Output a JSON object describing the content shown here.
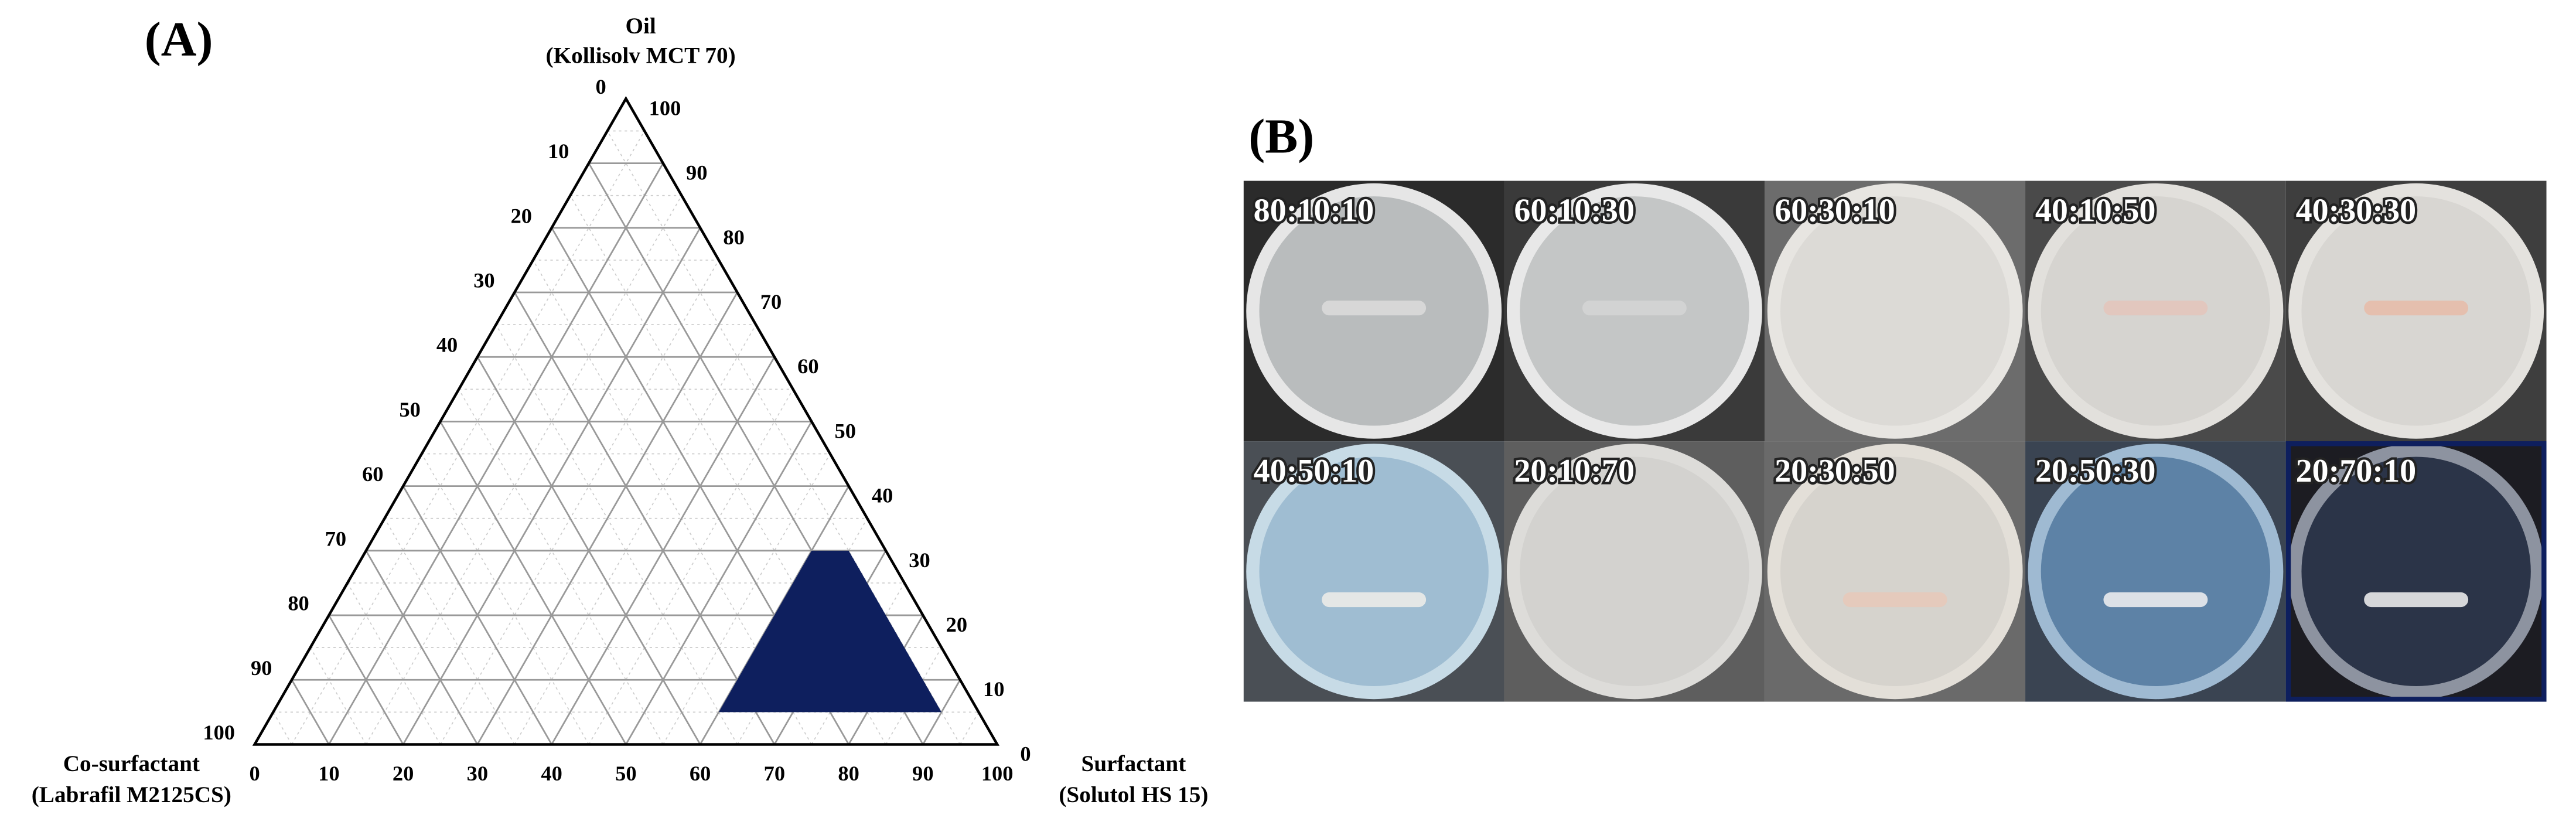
{
  "chart_data": {
    "type": "ternary",
    "panel_label": "(A)",
    "axes": {
      "oil": {
        "title": "Oil",
        "subtitle": "(Kollisolv MCT 70)",
        "lim": [
          0,
          100
        ],
        "ticks": [
          0,
          10,
          20,
          30,
          40,
          50,
          60,
          70,
          80,
          90,
          100
        ]
      },
      "co_surfactant": {
        "title": "Co-surfactant",
        "subtitle": "(Labrafil M2125CS)",
        "lim": [
          0,
          100
        ],
        "ticks": [
          0,
          10,
          20,
          30,
          40,
          50,
          60,
          70,
          80,
          90,
          100
        ]
      },
      "surfactant": {
        "title": "Surfactant",
        "subtitle": "(Solutol HS 15)",
        "lim": [
          0,
          100
        ],
        "ticks": [
          0,
          10,
          20,
          30,
          40,
          50,
          60,
          70,
          80,
          90,
          100
        ]
      }
    },
    "grid": true,
    "region": {
      "color": "#0e1f5e",
      "vertices": [
        {
          "oil": 30,
          "surfactant": 60,
          "co_surfactant": 10
        },
        {
          "oil": 30,
          "surfactant": 65,
          "co_surfactant": 5
        },
        {
          "oil": 5,
          "surfactant": 90,
          "co_surfactant": 5
        },
        {
          "oil": 5,
          "surfactant": 60,
          "co_surfactant": 35
        }
      ]
    }
  },
  "panel_b": {
    "label": "(B)",
    "photos": [
      {
        "label": "80:10:10"
      },
      {
        "label": "60:10:30"
      },
      {
        "label": "60:30:10"
      },
      {
        "label": "40:10:50"
      },
      {
        "label": "40:30:30"
      },
      {
        "label": "40:50:10"
      },
      {
        "label": "20:10:70"
      },
      {
        "label": "20:30:50"
      },
      {
        "label": "20:50:30"
      },
      {
        "label": "20:70:10"
      }
    ]
  }
}
